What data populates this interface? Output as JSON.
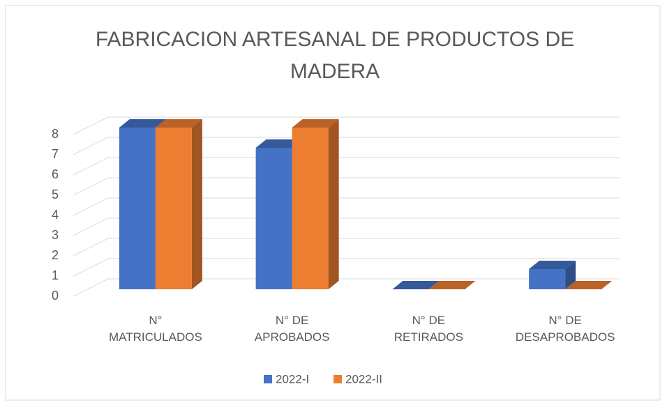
{
  "chart_data": {
    "type": "bar3d",
    "title": "FABRICACION ARTESANAL DE PRODUCTOS DE MADERA",
    "categories": [
      "N° MATRICULADOS",
      "N° DE APROBADOS",
      "N° DE RETIRADOS",
      "N° DE DESAPROBADOS"
    ],
    "series": [
      {
        "name": "2022-I",
        "color": "#4472c4",
        "values": [
          8,
          7,
          0,
          1
        ]
      },
      {
        "name": "2022-II",
        "color": "#ed7d31",
        "values": [
          8,
          8,
          0,
          0
        ]
      }
    ],
    "ylim": [
      0,
      8
    ],
    "yticks": [
      0,
      1,
      2,
      3,
      4,
      5,
      6,
      7,
      8
    ],
    "grid": true,
    "legend": "bottom"
  }
}
